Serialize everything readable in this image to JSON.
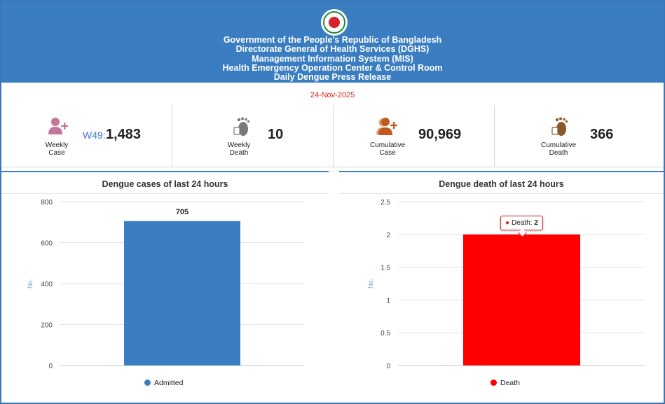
{
  "header": {
    "lines": [
      "Government of the People's Republic of Bangladesh",
      "Directorate General of Health Services (DGHS)",
      "Management Information System (MIS)",
      "Health Emergency Operation Center & Control Room",
      "Daily Dengue Press Release"
    ],
    "emblem_icon": "bangladesh-govt-emblem-icon"
  },
  "date": "24-Nov-2025",
  "stats": {
    "weekly_case": {
      "label": "Weekly\nCase",
      "prefix": "W49:",
      "value": "1,483",
      "icon": "user-plus-icon",
      "color": "#c2779a"
    },
    "weekly_death": {
      "label": "Weekly\nDeath",
      "value": "10",
      "icon": "footprint-tag-icon",
      "color": "#7a7a7a"
    },
    "cumulative_case": {
      "label": "Cumulative\nCase",
      "value": "90,969",
      "icon": "users-plus-icon",
      "color": "#c05a1f"
    },
    "cumulative_death": {
      "label": "Cumulative\nDeath",
      "value": "366",
      "icon": "footprint-tag-icon",
      "color": "#8a5a2b"
    }
  },
  "chart_data": [
    {
      "type": "bar",
      "title": "Dengue cases of last 24 hours",
      "categories": [
        "Admitted"
      ],
      "values": [
        705
      ],
      "data_labels": [
        "705"
      ],
      "ylabel": "No.",
      "ylim": [
        0,
        800
      ],
      "yticks": [
        "0",
        "200",
        "400",
        "600",
        "800"
      ],
      "grid": true,
      "legend": "bottom",
      "color": "#3a7dc0"
    },
    {
      "type": "bar",
      "title": "Dengue death of last 24 hours",
      "categories": [
        "Death"
      ],
      "values": [
        2
      ],
      "ylabel": "No.",
      "ylim": [
        0,
        2.5
      ],
      "yticks": [
        "0",
        "0.5",
        "1",
        "1.5",
        "2",
        "2.5"
      ],
      "grid": true,
      "legend": "bottom",
      "color": "#ff0000",
      "tooltip": {
        "label": "Death:",
        "value": "2"
      }
    }
  ]
}
